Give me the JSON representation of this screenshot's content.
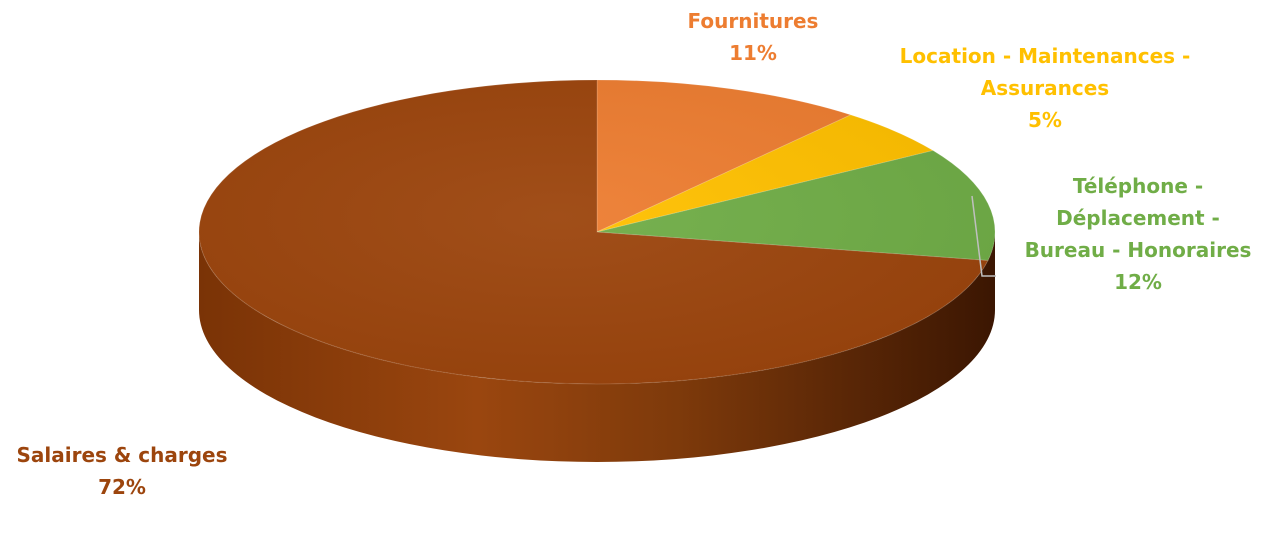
{
  "chart_data": {
    "type": "pie",
    "style": "3d",
    "series": [
      {
        "values": [
          {
            "label_lines": [
              "Fournitures"
            ],
            "percent_label": "11%",
            "value": 11,
            "color": "#ED7D31"
          },
          {
            "label_lines": [
              "Location - Maintenances -",
              "Assurances"
            ],
            "percent_label": "5%",
            "value": 5,
            "color": "#FFC000"
          },
          {
            "label_lines": [
              "Téléphone -",
              "Déplacement -",
              "Bureau - Honoraires"
            ],
            "percent_label": "12%",
            "value": 12,
            "color": "#70AD47"
          },
          {
            "label_lines": [
              "Salaires & charges"
            ],
            "percent_label": "72%",
            "value": 72,
            "color": "#9C450D"
          }
        ]
      }
    ],
    "legend": "none",
    "data_labels": "outside"
  }
}
